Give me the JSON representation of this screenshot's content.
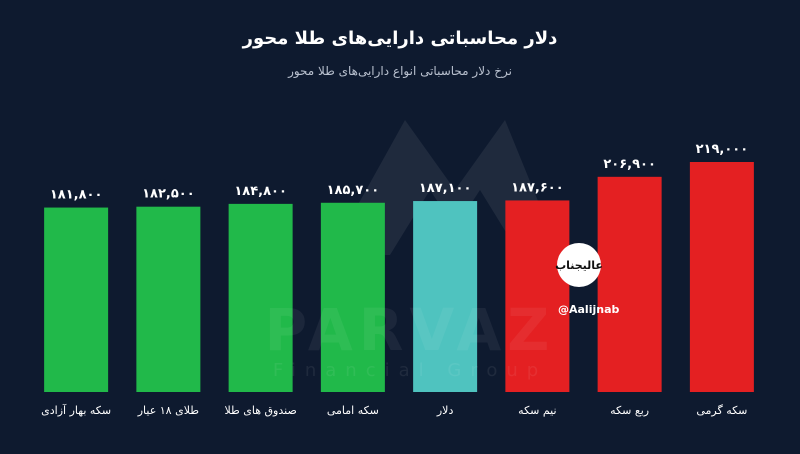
{
  "header": {
    "title": "دلار  محاسباتی دارایی‌های طلا محور",
    "subtitle": "نرخ دلار محاسباتی انواع دارایی‌های طلا محور"
  },
  "watermark": {
    "brand": "PARVAZ",
    "tagline": "Financial Group",
    "channel_logo_text": "عالیجناب",
    "channel_handle": "@Aalijnab"
  },
  "chart_data": {
    "type": "bar",
    "title": "دلار  محاسباتی دارایی‌های طلا محور",
    "subtitle": "نرخ دلار محاسباتی انواع دارایی‌های طلا محور",
    "xlabel": "",
    "ylabel": "",
    "ylim": [
      0,
      219000
    ],
    "grid": false,
    "legend": "none",
    "categories": [
      "سکه بهار آزادی",
      "طلای ۱۸ عیار",
      "صندوق های طلا",
      "سکه امامی",
      "دلار",
      "نیم سکه",
      "ربع سکه",
      "سکه گرمی"
    ],
    "values": [
      181800,
      182500,
      184800,
      185700,
      187100,
      187600,
      206900,
      219000
    ],
    "value_labels": [
      "۱۸۱,۸۰۰",
      "۱۸۲,۵۰۰",
      "۱۸۴,۸۰۰",
      "۱۸۵,۷۰۰",
      "۱۸۷,۱۰۰",
      "۱۸۷,۶۰۰",
      "۲۰۶,۹۰۰",
      "۲۱۹,۰۰۰"
    ],
    "colors": [
      "#21b94a",
      "#21b94a",
      "#21b94a",
      "#21b94a",
      "#4fc3bf",
      "#e42022",
      "#e42022",
      "#e42022"
    ]
  }
}
